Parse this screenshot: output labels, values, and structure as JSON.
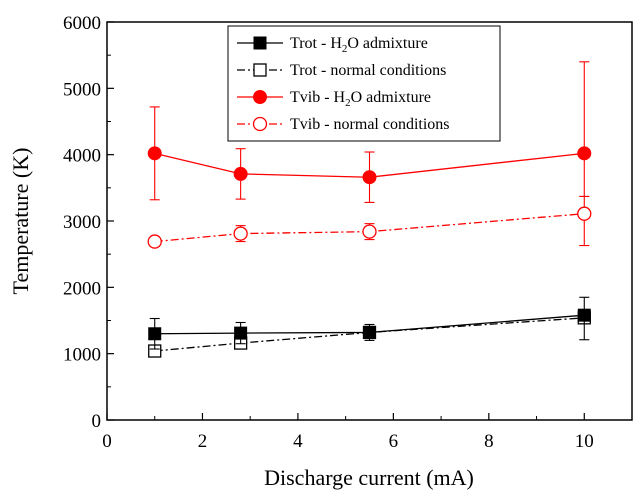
{
  "chart_data": {
    "type": "line",
    "xlabel": "Discharge current (mA)",
    "ylabel": "Temperature (K)",
    "xlim": [
      0,
      11
    ],
    "ylim": [
      0,
      6000
    ],
    "x_ticks": [
      "0",
      "2",
      "4",
      "6",
      "8",
      "10"
    ],
    "y_ticks": [
      "0",
      "1000",
      "2000",
      "3000",
      "4000",
      "5000",
      "6000"
    ],
    "grid": false,
    "legend_position": "top-center",
    "series": [
      {
        "name_pre": "Trot - H",
        "name_sub": "2",
        "name_post": "O admixture",
        "color": "#000000",
        "marker": "filled-square",
        "line_style": "solid",
        "x": [
          1.0,
          2.8,
          5.5,
          10.0
        ],
        "y": [
          1300,
          1310,
          1320,
          1580
        ],
        "err_lo": [
          230,
          160,
          120,
          370
        ],
        "err_hi": [
          230,
          160,
          120,
          270
        ]
      },
      {
        "name_pre": "Trot - normal conditions",
        "name_sub": "",
        "name_post": "",
        "color": "#000000",
        "marker": "open-square",
        "line_style": "dash-dot",
        "x": [
          1.0,
          2.8,
          5.5,
          10.0
        ],
        "y": [
          1040,
          1160,
          1320,
          1540
        ],
        "err_lo": [
          0,
          0,
          60,
          0
        ],
        "err_hi": [
          0,
          0,
          60,
          0
        ]
      },
      {
        "name_pre": "Tvib - H",
        "name_sub": "2",
        "name_post": "O admixture",
        "color": "#ff0000",
        "marker": "filled-circle",
        "line_style": "solid",
        "x": [
          1.0,
          2.8,
          5.5,
          10.0
        ],
        "y": [
          4020,
          3710,
          3660,
          4020
        ],
        "err_lo": [
          700,
          380,
          380,
          650
        ],
        "err_hi": [
          700,
          380,
          380,
          1380
        ]
      },
      {
        "name_pre": "Tvib - normal conditions",
        "name_sub": "",
        "name_post": "",
        "color": "#ff0000",
        "marker": "open-circle",
        "line_style": "dash-dot",
        "x": [
          1.0,
          2.8,
          5.5,
          10.0
        ],
        "y": [
          2690,
          2810,
          2840,
          3110
        ],
        "err_lo": [
          70,
          120,
          120,
          480
        ],
        "err_hi": [
          70,
          120,
          120,
          260
        ]
      }
    ]
  }
}
